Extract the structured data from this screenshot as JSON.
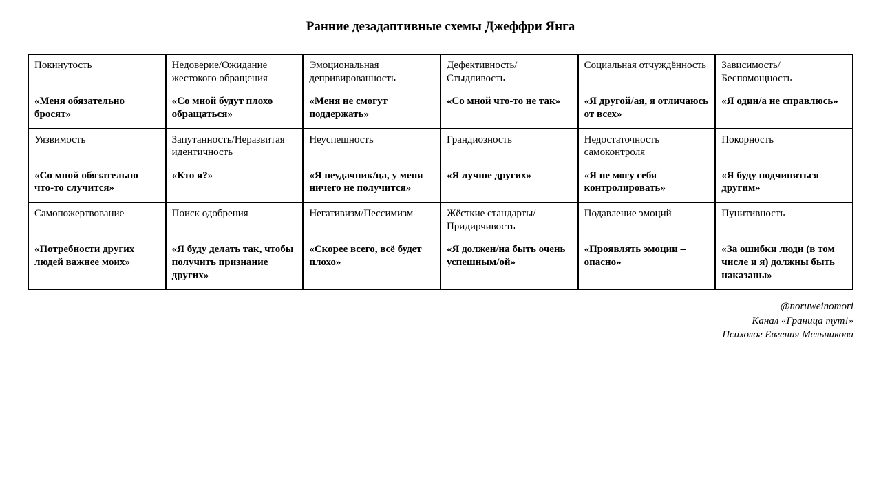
{
  "title": "Ранние дезадаптивные схемы Джеффри Янга",
  "table": {
    "type": "table",
    "columns": 6,
    "rows": 3,
    "border_color": "#000000",
    "border_width": 2,
    "background_color": "#ffffff",
    "text_color": "#000000",
    "name_fontsize": 15,
    "quote_fontsize": 15,
    "name_weight": "normal",
    "quote_weight": "bold",
    "cells": [
      [
        {
          "name": "Покинутость",
          "quote": "«Меня обязательно бросят»"
        },
        {
          "name": "Недоверие/Ожидание жестокого обращения",
          "quote": "«Со мной будут плохо обращаться»"
        },
        {
          "name": "Эмоциональная депривированность",
          "quote": "«Меня не смогут поддержать»"
        },
        {
          "name": "Дефективность/ Стыдливость",
          "quote": "«Со мной что-то не так»"
        },
        {
          "name": "Социальная отчуждённость",
          "quote": "«Я другой/ая, я отличаюсь от всех»"
        },
        {
          "name": "Зависимость/ Беспомощность",
          "quote": "«Я один/а не справлюсь»"
        }
      ],
      [
        {
          "name": "Уязвимость",
          "quote": "«Со мной обязательно что-то случится»"
        },
        {
          "name": "Запутанность/Неразвитая идентичность",
          "quote": "«Кто я?»"
        },
        {
          "name": "Неуспешность",
          "quote": "«Я неудачник/ца, у меня ничего не получится»"
        },
        {
          "name": "Грандиозность",
          "quote": "«Я лучше других»"
        },
        {
          "name": "Недостаточность самоконтроля",
          "quote": "«Я не могу себя контролировать»"
        },
        {
          "name": "Покорность",
          "quote": "«Я буду подчиняться другим»"
        }
      ],
      [
        {
          "name": "Самопожертвование",
          "quote": "«Потребности других людей важнее моих»"
        },
        {
          "name": "Поиск одобрения",
          "quote": "«Я буду делать так, чтобы получить признание других»"
        },
        {
          "name": "Негативизм/Пессимизм",
          "quote": "«Скорее всего, всё будет плохо»"
        },
        {
          "name": "Жёсткие стандарты/ Придирчивость",
          "quote": "«Я должен/на быть очень успешным/ой»"
        },
        {
          "name": "Подавление эмоций",
          "quote": "«Проявлять эмоции – опасно»"
        },
        {
          "name": "Пунитивность",
          "quote": "«За ошибки люди (в том числе и я) должны быть наказаны»"
        }
      ]
    ]
  },
  "credits": {
    "handle": "@noruweinomori",
    "channel": "Канал «Граница тут!»",
    "author": "Психолог Евгения Мельникова"
  }
}
